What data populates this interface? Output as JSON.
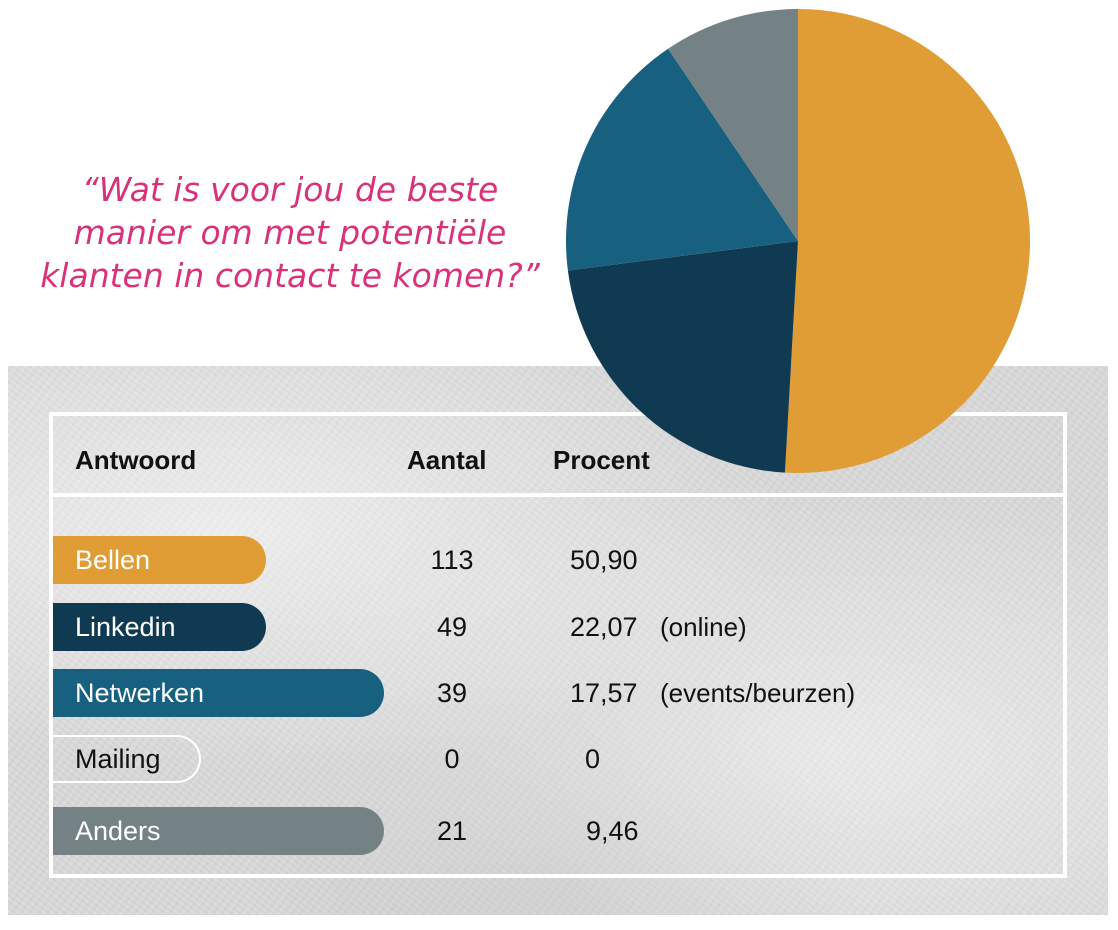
{
  "question": {
    "lines": [
      "“Wat is voor jou de beste",
      "manier om met potentiële",
      "klanten in contact te komen?”"
    ]
  },
  "table": {
    "headers": {
      "answer": "Antwoord",
      "count": "Aantal",
      "percent": "Procent"
    },
    "rows": [
      {
        "label": "Bellen",
        "count": "113",
        "percent": "50,90",
        "note": "",
        "color": "#e09c35",
        "style": "filled"
      },
      {
        "label": "Linkedin",
        "count": "49",
        "percent": "22,07",
        "note": "(online)",
        "color": "#0f3a52",
        "style": "filled"
      },
      {
        "label": "Netwerken",
        "count": "39",
        "percent": "17,57",
        "note": "(events/beurzen)",
        "color": "#176080",
        "style": "filled"
      },
      {
        "label": "Mailing",
        "count": "0",
        "percent": "0",
        "note": "",
        "color": "#ffffff",
        "style": "outline"
      },
      {
        "label": "Anders",
        "count": "21",
        "percent": "9,46",
        "note": "",
        "color": "#748285",
        "style": "filled"
      }
    ]
  },
  "chart_data": {
    "type": "pie",
    "title": "",
    "categories": [
      "Bellen",
      "Linkedin",
      "Netwerken",
      "Mailing",
      "Anders"
    ],
    "values": [
      50.9,
      22.07,
      17.57,
      0,
      9.46
    ],
    "colors": [
      "#e09c35",
      "#0f3a52",
      "#176080",
      "#ffffff",
      "#748285"
    ],
    "start": "12 o'clock",
    "direction": "clockwise"
  }
}
